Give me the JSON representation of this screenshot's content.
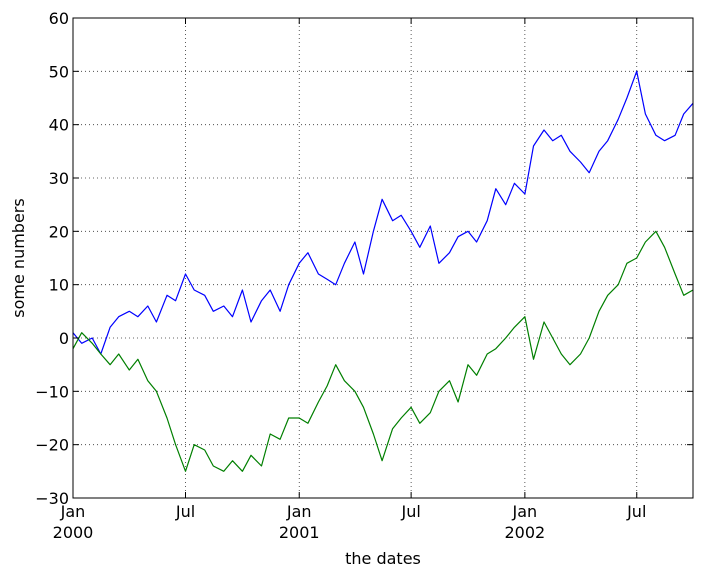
{
  "chart_data": {
    "type": "line",
    "title": "",
    "xlabel": "the dates",
    "ylabel": "some numbers",
    "xlim": [
      "2000-01-01",
      "2002-09-30"
    ],
    "ylim": [
      -30,
      60
    ],
    "grid": true,
    "x_ticks": [
      {
        "date": "2000-01-01",
        "label": [
          "Jan",
          "2000"
        ]
      },
      {
        "date": "2000-07-01",
        "label": [
          "Jul"
        ]
      },
      {
        "date": "2001-01-01",
        "label": [
          "Jan",
          "2001"
        ]
      },
      {
        "date": "2001-07-01",
        "label": [
          "Jul"
        ]
      },
      {
        "date": "2002-01-01",
        "label": [
          "Jan",
          "2002"
        ]
      },
      {
        "date": "2002-07-01",
        "label": [
          "Jul"
        ]
      }
    ],
    "y_ticks": [
      {
        "value": 60,
        "label": "60"
      },
      {
        "value": 50,
        "label": "50"
      },
      {
        "value": 40,
        "label": "40"
      },
      {
        "value": 30,
        "label": "30"
      },
      {
        "value": 20,
        "label": "20"
      },
      {
        "value": 10,
        "label": "10"
      },
      {
        "value": 0,
        "label": "0"
      },
      {
        "value": -10,
        "label": "−10"
      },
      {
        "value": -20,
        "label": "−20"
      },
      {
        "value": -30,
        "label": "−30"
      }
    ],
    "series": [
      {
        "color": "#0000ff",
        "x": [
          "2000-01-01",
          "2000-01-15",
          "2000-02-01",
          "2000-02-15",
          "2000-03-01",
          "2000-03-15",
          "2000-04-01",
          "2000-04-15",
          "2000-05-01",
          "2000-05-15",
          "2000-06-01",
          "2000-06-15",
          "2000-07-01",
          "2000-07-15",
          "2000-08-01",
          "2000-08-15",
          "2000-09-01",
          "2000-09-15",
          "2000-10-01",
          "2000-10-15",
          "2000-11-01",
          "2000-11-15",
          "2000-12-01",
          "2000-12-15",
          "2001-01-01",
          "2001-01-15",
          "2001-02-01",
          "2001-02-15",
          "2001-03-01",
          "2001-03-15",
          "2001-04-01",
          "2001-04-15",
          "2001-05-01",
          "2001-05-15",
          "2001-06-01",
          "2001-06-15",
          "2001-07-01",
          "2001-07-15",
          "2001-08-01",
          "2001-08-15",
          "2001-09-01",
          "2001-09-15",
          "2001-10-01",
          "2001-10-15",
          "2001-11-01",
          "2001-11-15",
          "2001-12-01",
          "2001-12-15",
          "2002-01-01",
          "2002-01-15",
          "2002-02-01",
          "2002-02-15",
          "2002-03-01",
          "2002-03-15",
          "2002-04-01",
          "2002-04-15",
          "2002-05-01",
          "2002-05-15",
          "2002-06-01",
          "2002-06-15",
          "2002-07-01",
          "2002-07-15",
          "2002-08-01",
          "2002-08-15",
          "2002-09-01",
          "2002-09-15",
          "2002-09-30"
        ],
        "y": [
          1,
          -1,
          0,
          -3,
          2,
          4,
          5,
          4,
          6,
          3,
          8,
          7,
          12,
          9,
          8,
          5,
          6,
          4,
          9,
          3,
          7,
          9,
          5,
          10,
          14,
          16,
          12,
          11,
          10,
          14,
          18,
          12,
          20,
          26,
          22,
          23,
          20,
          17,
          21,
          14,
          16,
          19,
          20,
          18,
          22,
          28,
          25,
          29,
          27,
          36,
          39,
          37,
          38,
          35,
          33,
          31,
          35,
          37,
          41,
          45,
          50,
          42,
          38,
          37,
          38,
          42,
          44
        ]
      },
      {
        "color": "#007f00",
        "x": [
          "2000-01-01",
          "2000-01-15",
          "2000-02-01",
          "2000-02-15",
          "2000-03-01",
          "2000-03-15",
          "2000-04-01",
          "2000-04-15",
          "2000-05-01",
          "2000-05-15",
          "2000-06-01",
          "2000-06-15",
          "2000-07-01",
          "2000-07-15",
          "2000-08-01",
          "2000-08-15",
          "2000-09-01",
          "2000-09-15",
          "2000-10-01",
          "2000-10-15",
          "2000-11-01",
          "2000-11-15",
          "2000-12-01",
          "2000-12-15",
          "2001-01-01",
          "2001-01-15",
          "2001-02-01",
          "2001-02-15",
          "2001-03-01",
          "2001-03-15",
          "2001-04-01",
          "2001-04-15",
          "2001-05-01",
          "2001-05-15",
          "2001-06-01",
          "2001-06-15",
          "2001-07-01",
          "2001-07-15",
          "2001-08-01",
          "2001-08-15",
          "2001-09-01",
          "2001-09-15",
          "2001-10-01",
          "2001-10-15",
          "2001-11-01",
          "2001-11-15",
          "2001-12-01",
          "2001-12-15",
          "2002-01-01",
          "2002-01-15",
          "2002-02-01",
          "2002-02-15",
          "2002-03-01",
          "2002-03-15",
          "2002-04-01",
          "2002-04-15",
          "2002-05-01",
          "2002-05-15",
          "2002-06-01",
          "2002-06-15",
          "2002-07-01",
          "2002-07-15",
          "2002-08-01",
          "2002-08-15",
          "2002-09-01",
          "2002-09-15",
          "2002-09-30"
        ],
        "y": [
          -2,
          1,
          -1,
          -3,
          -5,
          -3,
          -6,
          -4,
          -8,
          -10,
          -15,
          -20,
          -25,
          -20,
          -21,
          -24,
          -25,
          -23,
          -25,
          -22,
          -24,
          -18,
          -19,
          -15,
          -15,
          -16,
          -12,
          -9,
          -5,
          -8,
          -10,
          -13,
          -18,
          -23,
          -17,
          -15,
          -13,
          -16,
          -14,
          -10,
          -8,
          -12,
          -5,
          -7,
          -3,
          -2,
          0,
          2,
          4,
          -4,
          3,
          0,
          -3,
          -5,
          -3,
          0,
          5,
          8,
          10,
          14,
          15,
          18,
          20,
          17,
          12,
          8,
          9
        ]
      }
    ]
  }
}
